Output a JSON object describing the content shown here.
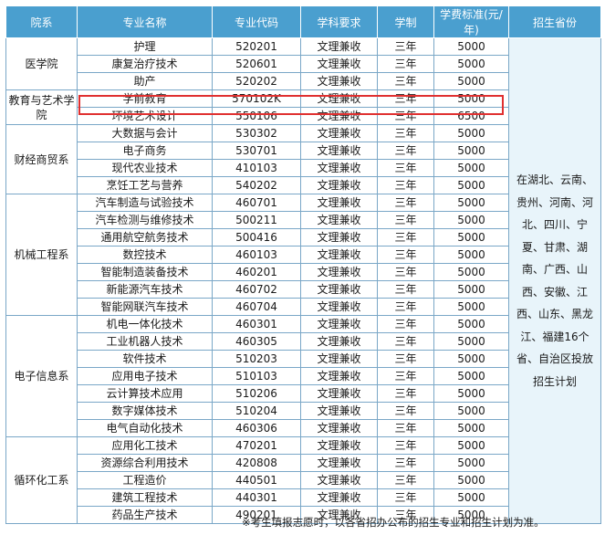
{
  "headers": [
    "院系",
    "专业名称",
    "专业代码",
    "学科要求",
    "学制",
    "学费标准(元/年)",
    "招生省份"
  ],
  "departments": [
    {
      "name": "医学院",
      "rows": [
        {
          "major": "护理",
          "code": "520201",
          "req": "文理兼收",
          "years": "三年",
          "fee": "5000"
        },
        {
          "major": "康复治疗技术",
          "code": "520601",
          "req": "文理兼收",
          "years": "三年",
          "fee": "5000"
        },
        {
          "major": "助产",
          "code": "520202",
          "req": "文理兼收",
          "years": "三年",
          "fee": "5000"
        }
      ]
    },
    {
      "name": "教育与艺术学院",
      "rows": [
        {
          "major": "学前教育",
          "code": "570102K",
          "req": "文理兼收",
          "years": "三年",
          "fee": "5000"
        },
        {
          "major": "环境艺术设计",
          "code": "550106",
          "req": "文理兼收",
          "years": "三年",
          "fee": "6500"
        }
      ]
    },
    {
      "name": "财经商贸系",
      "rows": [
        {
          "major": "大数据与会计",
          "code": "530302",
          "req": "文理兼收",
          "years": "三年",
          "fee": "5000"
        },
        {
          "major": "电子商务",
          "code": "530701",
          "req": "文理兼收",
          "years": "三年",
          "fee": "5000"
        },
        {
          "major": "现代农业技术",
          "code": "410103",
          "req": "文理兼收",
          "years": "三年",
          "fee": "5000"
        },
        {
          "major": "烹饪工艺与营养",
          "code": "540202",
          "req": "文理兼收",
          "years": "三年",
          "fee": "5000"
        }
      ]
    },
    {
      "name": "机械工程系",
      "rows": [
        {
          "major": "汽车制造与试验技术",
          "code": "460701",
          "req": "文理兼收",
          "years": "三年",
          "fee": "5000"
        },
        {
          "major": "汽车检测与维修技术",
          "code": "500211",
          "req": "文理兼收",
          "years": "三年",
          "fee": "5000"
        },
        {
          "major": "通用航空航务技术",
          "code": "500416",
          "req": "文理兼收",
          "years": "三年",
          "fee": "5000"
        },
        {
          "major": "数控技术",
          "code": "460103",
          "req": "文理兼收",
          "years": "三年",
          "fee": "5000"
        },
        {
          "major": "智能制造装备技术",
          "code": "460201",
          "req": "文理兼收",
          "years": "三年",
          "fee": "5000"
        },
        {
          "major": "新能源汽车技术",
          "code": "460702",
          "req": "文理兼收",
          "years": "三年",
          "fee": "5000"
        },
        {
          "major": "智能网联汽车技术",
          "code": "460704",
          "req": "文理兼收",
          "years": "三年",
          "fee": "5000"
        }
      ]
    },
    {
      "name": "电子信息系",
      "rows": [
        {
          "major": "机电一体化技术",
          "code": "460301",
          "req": "文理兼收",
          "years": "三年",
          "fee": "5000"
        },
        {
          "major": "工业机器人技术",
          "code": "460305",
          "req": "文理兼收",
          "years": "三年",
          "fee": "5000"
        },
        {
          "major": "软件技术",
          "code": "510203",
          "req": "文理兼收",
          "years": "三年",
          "fee": "5000"
        },
        {
          "major": "应用电子技术",
          "code": "510103",
          "req": "文理兼收",
          "years": "三年",
          "fee": "5000"
        },
        {
          "major": "云计算技术应用",
          "code": "510206",
          "req": "文理兼收",
          "years": "三年",
          "fee": "5000"
        },
        {
          "major": "数字媒体技术",
          "code": "510204",
          "req": "文理兼收",
          "years": "三年",
          "fee": "5000"
        },
        {
          "major": "电气自动化技术",
          "code": "460306",
          "req": "文理兼收",
          "years": "三年",
          "fee": "5000"
        }
      ]
    },
    {
      "name": "循环化工系",
      "rows": [
        {
          "major": "应用化工技术",
          "code": "470201",
          "req": "文理兼收",
          "years": "三年",
          "fee": "5000"
        },
        {
          "major": "资源综合利用技术",
          "code": "420808",
          "req": "文理兼收",
          "years": "三年",
          "fee": "5000"
        },
        {
          "major": "工程造价",
          "code": "440501",
          "req": "文理兼收",
          "years": "三年",
          "fee": "5000"
        },
        {
          "major": "建筑工程技术",
          "code": "440301",
          "req": "文理兼收",
          "years": "三年",
          "fee": "5000"
        },
        {
          "major": "药品生产技术",
          "code": "490201",
          "req": "文理兼收",
          "years": "三年",
          "fee": "5000"
        }
      ]
    }
  ],
  "provinces": "在湖北、云南、贵州、河南、河北、四川、宁夏、甘肃、湖南、广西、山西、安徽、江西、山东、黑龙江、福建16个省、自治区投放招生计划",
  "footnote": "※考生填报志愿时，以各省招办公布的招生专业和招生计划为准。",
  "colors": {
    "header": "#4a9fcf",
    "border": "#7aa7c7",
    "highlight": "#e03030",
    "province_bg": "#e8f4fa"
  }
}
